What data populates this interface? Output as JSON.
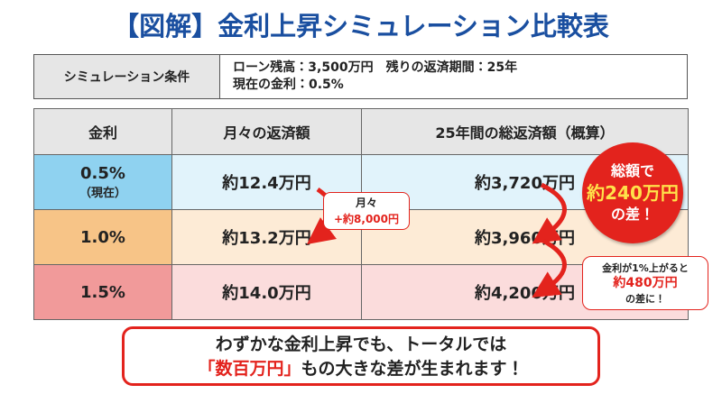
{
  "header": {
    "title": "【図解】金利上昇シミュレーション比較表"
  },
  "conditions": {
    "label": "シミュレーション条件",
    "lines": [
      "ローン残高：3,500万円　残りの返済期間：25年",
      "現在の金利：0.5%"
    ]
  },
  "table": {
    "headers": [
      "金利",
      "月々の返済額",
      "25年間の総返済額（概算）"
    ],
    "rows": [
      {
        "rate": "0.5%",
        "note": "（現在）",
        "monthly": "約12.4万円",
        "total": "約3,720万円"
      },
      {
        "rate": "1.0%",
        "monthly": "約13.2万円",
        "total": "約3,960万円"
      },
      {
        "rate": "1.5%",
        "monthly": "約14.0万円",
        "total": "約4,200万円"
      }
    ]
  },
  "callouts": {
    "monthly": {
      "line1": "月々",
      "line2": "+約8,000円"
    },
    "total": {
      "line1": "総額で",
      "highlight": "約240万円",
      "line3": "の差！"
    },
    "rate": {
      "line1": "金利が1%上がると",
      "highlight": "約480万円",
      "line3": "の差に！"
    }
  },
  "footer": {
    "line1": "わずかな金利上昇でも、トータルでは",
    "highlight": "「数百万円」",
    "rest": "もの大きな差が生まれます！"
  }
}
